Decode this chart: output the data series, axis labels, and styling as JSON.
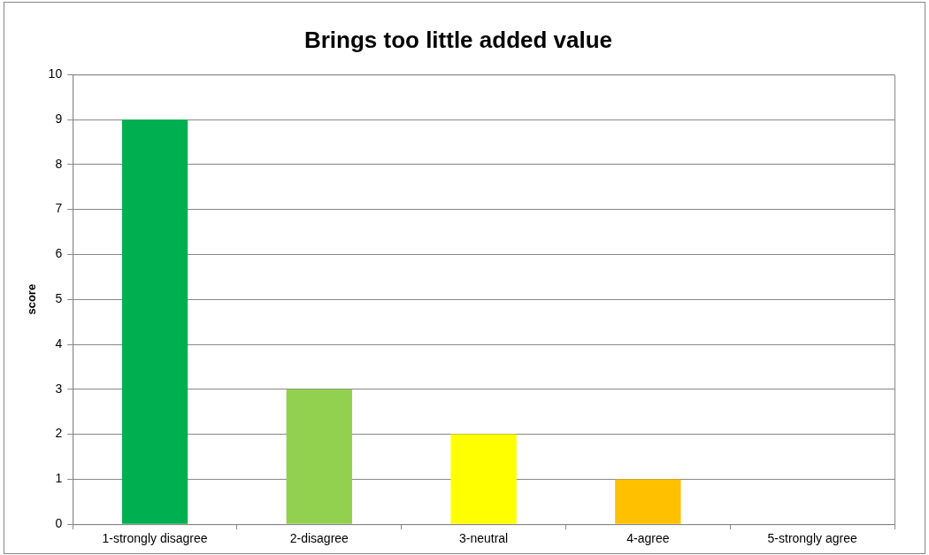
{
  "chart_data": {
    "type": "bar",
    "title": "Brings too little added value",
    "ylabel": "score",
    "categories": [
      "1-strongly disagree",
      "2-disagree",
      "3-neutral",
      "4-agree",
      "5-strongly agree"
    ],
    "values": [
      9,
      3,
      2,
      1,
      0
    ],
    "colors": [
      "#00b050",
      "#92d050",
      "#ffff00",
      "#ffc000",
      "#ff0000"
    ],
    "ylim": [
      0,
      10
    ],
    "yticks": [
      0,
      1,
      2,
      3,
      4,
      5,
      6,
      7,
      8,
      9,
      10
    ],
    "grid": "y",
    "legend": false
  }
}
